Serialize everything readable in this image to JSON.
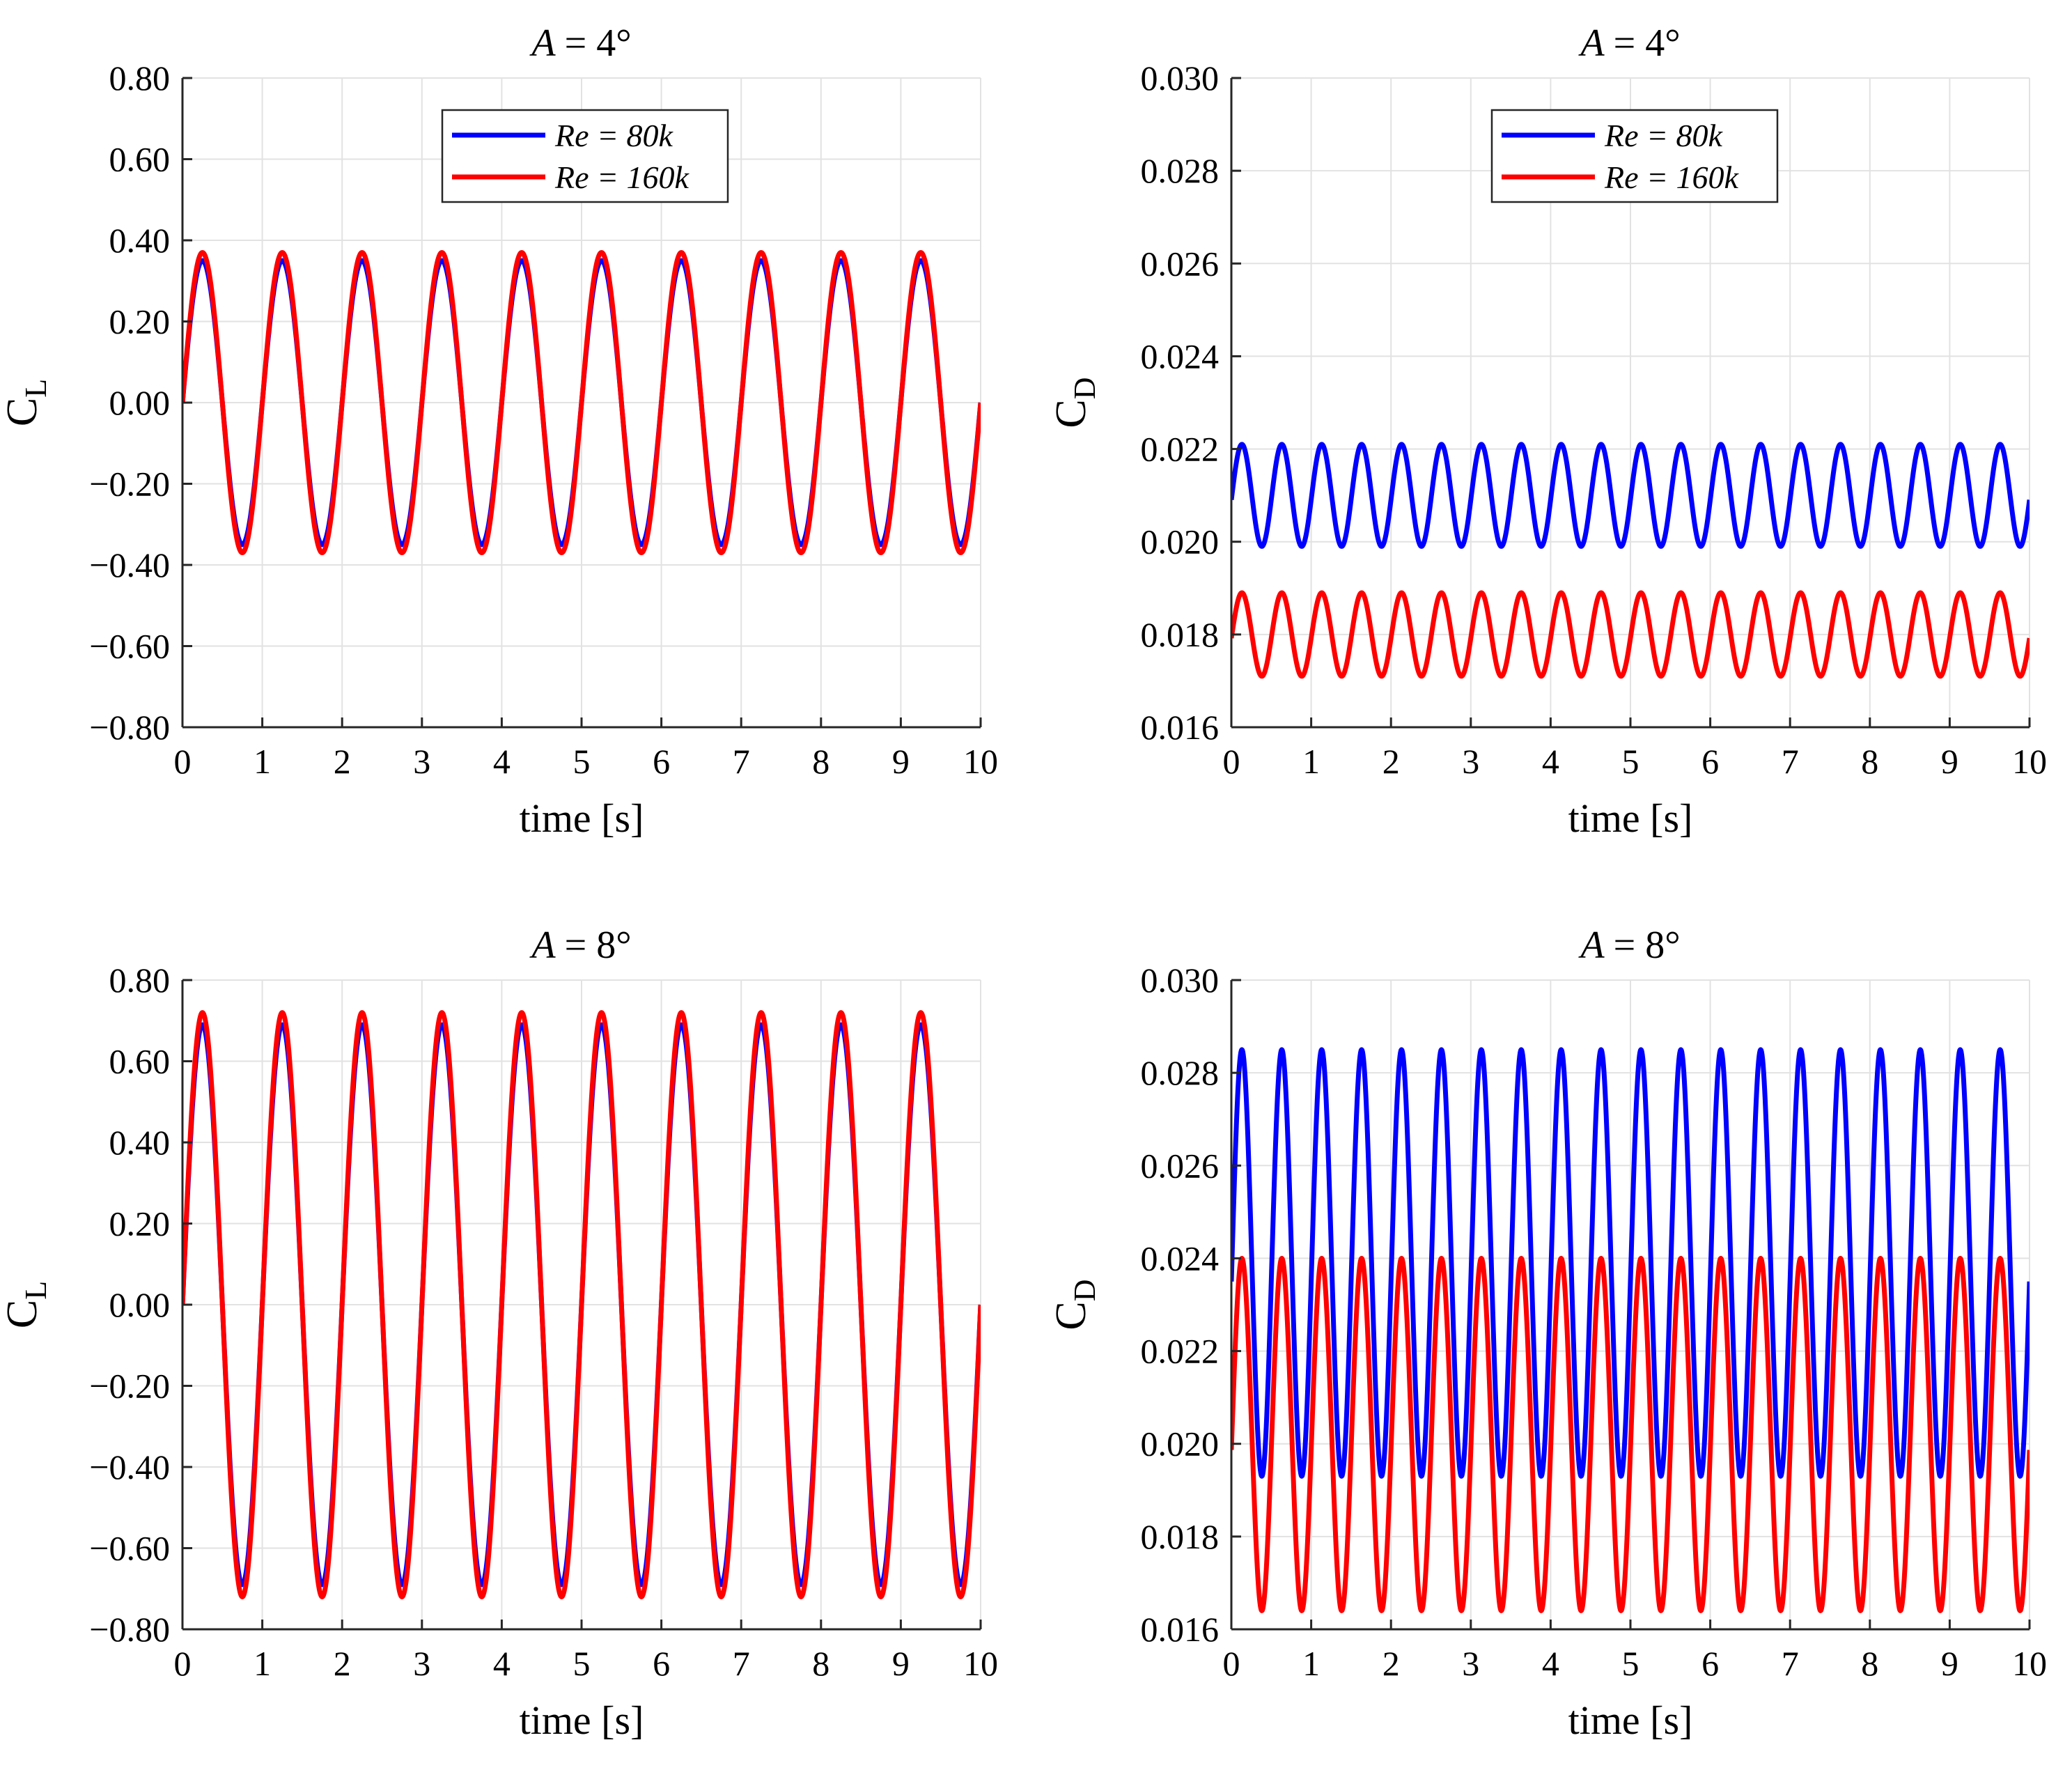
{
  "figure": {
    "series_styles": [
      {
        "name": "Re = 80k",
        "color": "#0000ff"
      },
      {
        "name": "Re = 160k",
        "color": "#ff0000"
      }
    ],
    "grid_color": "#e2e2e2",
    "axis_color": "#262626"
  },
  "chart_data": [
    {
      "type": "line",
      "title": "A = 4°",
      "xlabel": "time [s]",
      "ylabel": "C_L",
      "ylabel_main": "C",
      "ylabel_sub": "L",
      "xlim": [
        0,
        10
      ],
      "ylim": [
        -0.8,
        0.8
      ],
      "xticks": [
        0,
        1,
        2,
        3,
        4,
        5,
        6,
        7,
        8,
        9,
        10
      ],
      "xtick_labels": [
        "0",
        "1",
        "2",
        "3",
        "4",
        "5",
        "6",
        "7",
        "8",
        "9",
        "10"
      ],
      "yticks": [
        -0.8,
        -0.6,
        -0.4,
        -0.2,
        0.0,
        0.2,
        0.4,
        0.6,
        0.8
      ],
      "ytick_labels": [
        "−0.80",
        "−0.60",
        "−0.40",
        "−0.20",
        "0.00",
        "0.20",
        "0.40",
        "0.60",
        "0.80"
      ],
      "legend": {
        "show": true,
        "location": "top-center",
        "entries": [
          "Re = 80k",
          "Re = 160k"
        ]
      },
      "grid": true,
      "series": [
        {
          "name": "Re = 80k",
          "kind": "sine",
          "mean": 0.0,
          "amplitude": 0.35,
          "frequency_hz": 1.0,
          "phase_deg": 0,
          "color": "#0000ff"
        },
        {
          "name": "Re = 160k",
          "kind": "sine",
          "mean": 0.0,
          "amplitude": 0.37,
          "frequency_hz": 1.0,
          "phase_deg": 0,
          "color": "#ff0000"
        }
      ]
    },
    {
      "type": "line",
      "title": "A = 4°",
      "xlabel": "time [s]",
      "ylabel": "C_D",
      "ylabel_main": "C",
      "ylabel_sub": "D",
      "xlim": [
        0,
        10
      ],
      "ylim": [
        0.016,
        0.03
      ],
      "xticks": [
        0,
        1,
        2,
        3,
        4,
        5,
        6,
        7,
        8,
        9,
        10
      ],
      "xtick_labels": [
        "0",
        "1",
        "2",
        "3",
        "4",
        "5",
        "6",
        "7",
        "8",
        "9",
        "10"
      ],
      "yticks": [
        0.016,
        0.018,
        0.02,
        0.022,
        0.024,
        0.026,
        0.028,
        0.03
      ],
      "ytick_labels": [
        "0.016",
        "0.018",
        "0.020",
        "0.022",
        "0.024",
        "0.026",
        "0.028",
        "0.030"
      ],
      "legend": {
        "show": true,
        "location": "top-center",
        "entries": [
          "Re = 80k",
          "Re = 160k"
        ]
      },
      "grid": true,
      "series": [
        {
          "name": "Re = 80k",
          "kind": "sine",
          "mean": 0.021,
          "amplitude": 0.0011,
          "frequency_hz": 2.0,
          "phase_deg": -5,
          "color": "#0000ff"
        },
        {
          "name": "Re = 160k",
          "kind": "sine",
          "mean": 0.018,
          "amplitude": 0.0009,
          "frequency_hz": 2.0,
          "phase_deg": -5,
          "color": "#ff0000"
        }
      ]
    },
    {
      "type": "line",
      "title": "A = 8°",
      "xlabel": "time [s]",
      "ylabel": "C_L",
      "ylabel_main": "C",
      "ylabel_sub": "L",
      "xlim": [
        0,
        10
      ],
      "ylim": [
        -0.8,
        0.8
      ],
      "xticks": [
        0,
        1,
        2,
        3,
        4,
        5,
        6,
        7,
        8,
        9,
        10
      ],
      "xtick_labels": [
        "0",
        "1",
        "2",
        "3",
        "4",
        "5",
        "6",
        "7",
        "8",
        "9",
        "10"
      ],
      "yticks": [
        -0.8,
        -0.6,
        -0.4,
        -0.2,
        0.0,
        0.2,
        0.4,
        0.6,
        0.8
      ],
      "ytick_labels": [
        "−0.80",
        "−0.60",
        "−0.40",
        "−0.20",
        "0.00",
        "0.20",
        "0.40",
        "0.60",
        "0.80"
      ],
      "legend": {
        "show": false
      },
      "grid": true,
      "series": [
        {
          "name": "Re = 80k",
          "kind": "sine",
          "mean": 0.0,
          "amplitude": 0.69,
          "frequency_hz": 1.0,
          "phase_deg": 0,
          "color": "#0000ff"
        },
        {
          "name": "Re = 160k",
          "kind": "sine",
          "mean": 0.0,
          "amplitude": 0.72,
          "frequency_hz": 1.0,
          "phase_deg": 0,
          "color": "#ff0000"
        }
      ]
    },
    {
      "type": "line",
      "title": "A = 8°",
      "xlabel": "time [s]",
      "ylabel": "C_D",
      "ylabel_main": "C",
      "ylabel_sub": "D",
      "xlim": [
        0,
        10
      ],
      "ylim": [
        0.016,
        0.03
      ],
      "xticks": [
        0,
        1,
        2,
        3,
        4,
        5,
        6,
        7,
        8,
        9,
        10
      ],
      "xtick_labels": [
        "0",
        "1",
        "2",
        "3",
        "4",
        "5",
        "6",
        "7",
        "8",
        "9",
        "10"
      ],
      "yticks": [
        0.016,
        0.018,
        0.02,
        0.022,
        0.024,
        0.026,
        0.028,
        0.03
      ],
      "ytick_labels": [
        "0.016",
        "0.018",
        "0.020",
        "0.022",
        "0.024",
        "0.026",
        "0.028",
        "0.030"
      ],
      "legend": {
        "show": false
      },
      "grid": true,
      "series": [
        {
          "name": "Re = 80k",
          "kind": "sine",
          "mean": 0.0239,
          "amplitude": 0.0046,
          "frequency_hz": 2.0,
          "phase_deg": -5,
          "color": "#0000ff"
        },
        {
          "name": "Re = 160k",
          "kind": "sine",
          "mean": 0.0202,
          "amplitude": 0.0038,
          "frequency_hz": 2.0,
          "phase_deg": -5,
          "color": "#ff0000"
        }
      ]
    }
  ]
}
